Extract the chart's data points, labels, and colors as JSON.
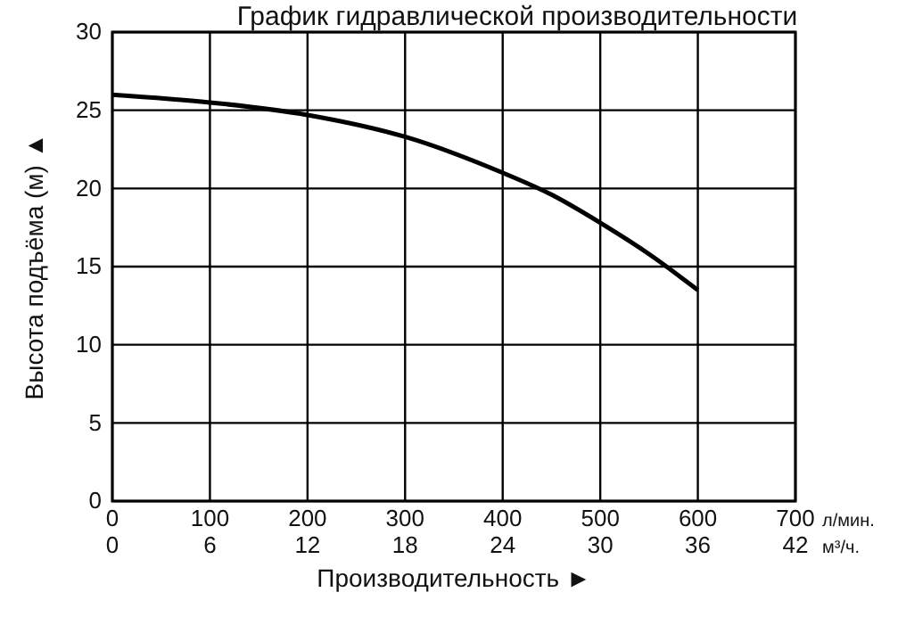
{
  "chart_data": {
    "type": "line",
    "title": "График гидравлической производительности",
    "xlabel": "Производительность ►",
    "ylabel": "Высота подъёма (м) ▲",
    "x": [
      0,
      100,
      200,
      300,
      400,
      450,
      500,
      550,
      600
    ],
    "series": [
      {
        "color": "#000000",
        "values": [
          26,
          25.5,
          24.7,
          23.3,
          21,
          19.6,
          17.8,
          15.8,
          13.5
        ]
      }
    ],
    "xlim": [
      0,
      700
    ],
    "xticks": [
      0,
      100,
      200,
      300,
      400,
      500,
      600,
      700
    ],
    "x2lim": [
      0,
      42
    ],
    "x2ticks": [
      0,
      6,
      12,
      18,
      24,
      30,
      36,
      42
    ],
    "ylim": [
      0,
      30
    ],
    "yticks": [
      0,
      5,
      10,
      15,
      20,
      25,
      30
    ],
    "annotations": [
      "л/мин.",
      "м³/ч."
    ],
    "grid": true,
    "marker": "none",
    "line_style": "solid"
  }
}
